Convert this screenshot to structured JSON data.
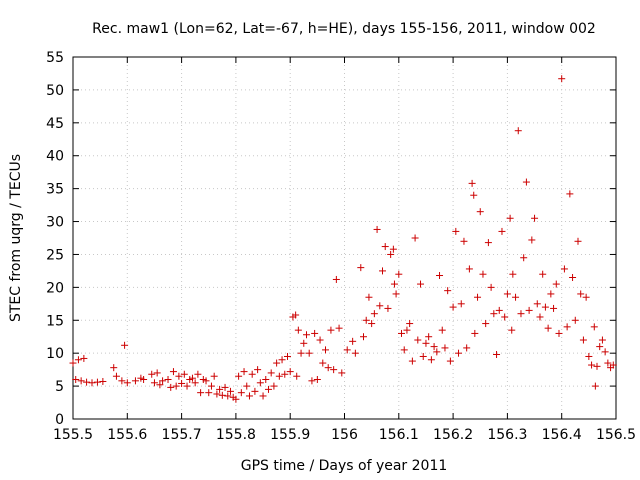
{
  "chart_data": {
    "type": "scatter",
    "title": "Rec. maw1 (Lon=62, Lat=-67, h=HE), days 155-156, 2011, window 002",
    "xlabel": "GPS time / Days of year 2011",
    "ylabel": "STEC from uqrg / TECUs",
    "xlim": [
      155.5,
      156.5
    ],
    "ylim": [
      0,
      55
    ],
    "x_ticks": [
      155.5,
      155.6,
      155.7,
      155.8,
      155.9,
      156,
      156.1,
      156.2,
      156.3,
      156.4,
      156.5
    ],
    "x_tick_labels": [
      "155.5",
      "155.6",
      "155.7",
      "155.8",
      "155.9",
      "156",
      "156.1",
      "156.2",
      "156.3",
      "156.4",
      "156.5"
    ],
    "y_ticks": [
      0,
      5,
      10,
      15,
      20,
      25,
      30,
      35,
      40,
      45,
      50,
      55
    ],
    "y_tick_labels": [
      "0",
      "5",
      "10",
      "15",
      "20",
      "25",
      "30",
      "35",
      "40",
      "45",
      "50",
      "55"
    ],
    "grid": true,
    "legend": "none",
    "marker": "plus",
    "series": [
      {
        "color": "#cc0000",
        "points": [
          [
            155.5,
            8.5
          ],
          [
            155.505,
            6.0
          ],
          [
            155.51,
            9.0
          ],
          [
            155.515,
            5.8
          ],
          [
            155.52,
            9.2
          ],
          [
            155.525,
            5.6
          ],
          [
            155.535,
            5.5
          ],
          [
            155.545,
            5.6
          ],
          [
            155.555,
            5.7
          ],
          [
            155.575,
            7.8
          ],
          [
            155.58,
            6.5
          ],
          [
            155.595,
            11.2
          ],
          [
            155.59,
            5.8
          ],
          [
            155.6,
            5.5
          ],
          [
            155.615,
            5.8
          ],
          [
            155.625,
            6.2
          ],
          [
            155.63,
            6.0
          ],
          [
            155.645,
            6.8
          ],
          [
            155.65,
            5.5
          ],
          [
            155.655,
            7.0
          ],
          [
            155.66,
            5.2
          ],
          [
            155.665,
            5.8
          ],
          [
            155.675,
            6.0
          ],
          [
            155.68,
            4.8
          ],
          [
            155.685,
            7.2
          ],
          [
            155.69,
            5.0
          ],
          [
            155.695,
            6.5
          ],
          [
            155.7,
            5.4
          ],
          [
            155.705,
            6.8
          ],
          [
            155.71,
            5.0
          ],
          [
            155.715,
            6.0
          ],
          [
            155.72,
            6.2
          ],
          [
            155.725,
            5.5
          ],
          [
            155.73,
            6.8
          ],
          [
            155.735,
            4.0
          ],
          [
            155.74,
            6.0
          ],
          [
            155.745,
            5.8
          ],
          [
            155.75,
            4.0
          ],
          [
            155.755,
            5.0
          ],
          [
            155.76,
            6.5
          ],
          [
            155.765,
            3.8
          ],
          [
            155.77,
            4.5
          ],
          [
            155.775,
            3.6
          ],
          [
            155.78,
            4.8
          ],
          [
            155.785,
            3.5
          ],
          [
            155.79,
            4.2
          ],
          [
            155.795,
            3.3
          ],
          [
            155.8,
            3.0
          ],
          [
            155.805,
            6.5
          ],
          [
            155.81,
            4.0
          ],
          [
            155.815,
            7.2
          ],
          [
            155.82,
            5.0
          ],
          [
            155.825,
            3.5
          ],
          [
            155.83,
            6.8
          ],
          [
            155.835,
            4.2
          ],
          [
            155.84,
            7.5
          ],
          [
            155.845,
            5.5
          ],
          [
            155.85,
            3.5
          ],
          [
            155.855,
            6.0
          ],
          [
            155.86,
            4.5
          ],
          [
            155.865,
            7.0
          ],
          [
            155.87,
            5.0
          ],
          [
            155.875,
            8.5
          ],
          [
            155.88,
            6.5
          ],
          [
            155.885,
            9.0
          ],
          [
            155.89,
            6.8
          ],
          [
            155.895,
            9.5
          ],
          [
            155.9,
            7.2
          ],
          [
            155.905,
            15.5
          ],
          [
            155.91,
            15.8
          ],
          [
            155.912,
            6.5
          ],
          [
            155.915,
            13.5
          ],
          [
            155.92,
            10.0
          ],
          [
            155.925,
            11.5
          ],
          [
            155.93,
            12.8
          ],
          [
            155.935,
            10.0
          ],
          [
            155.94,
            5.8
          ],
          [
            155.945,
            13.0
          ],
          [
            155.95,
            6.0
          ],
          [
            155.955,
            12.0
          ],
          [
            155.96,
            8.5
          ],
          [
            155.965,
            10.5
          ],
          [
            155.97,
            7.8
          ],
          [
            155.975,
            13.5
          ],
          [
            155.98,
            7.5
          ],
          [
            155.985,
            21.2
          ],
          [
            155.99,
            13.8
          ],
          [
            155.995,
            7.0
          ],
          [
            156.005,
            10.5
          ],
          [
            156.015,
            11.8
          ],
          [
            156.02,
            10.0
          ],
          [
            156.03,
            23.0
          ],
          [
            156.035,
            12.5
          ],
          [
            156.04,
            15.0
          ],
          [
            156.045,
            18.5
          ],
          [
            156.05,
            14.5
          ],
          [
            156.055,
            16.0
          ],
          [
            156.06,
            28.8
          ],
          [
            156.065,
            17.2
          ],
          [
            156.07,
            22.5
          ],
          [
            156.075,
            26.2
          ],
          [
            156.08,
            16.8
          ],
          [
            156.085,
            25.0
          ],
          [
            156.09,
            25.8
          ],
          [
            156.092,
            20.5
          ],
          [
            156.095,
            19.0
          ],
          [
            156.1,
            22.0
          ],
          [
            156.105,
            13.0
          ],
          [
            156.11,
            10.5
          ],
          [
            156.115,
            13.5
          ],
          [
            156.12,
            14.5
          ],
          [
            156.125,
            8.8
          ],
          [
            156.13,
            27.5
          ],
          [
            156.135,
            12.0
          ],
          [
            156.14,
            20.5
          ],
          [
            156.145,
            9.5
          ],
          [
            156.15,
            11.5
          ],
          [
            156.155,
            12.5
          ],
          [
            156.16,
            9.0
          ],
          [
            156.165,
            11.0
          ],
          [
            156.17,
            10.2
          ],
          [
            156.175,
            21.8
          ],
          [
            156.18,
            13.5
          ],
          [
            156.185,
            10.8
          ],
          [
            156.19,
            19.5
          ],
          [
            156.195,
            8.8
          ],
          [
            156.2,
            17.0
          ],
          [
            156.205,
            28.5
          ],
          [
            156.21,
            10.0
          ],
          [
            156.215,
            17.5
          ],
          [
            156.22,
            27.0
          ],
          [
            156.225,
            10.8
          ],
          [
            156.23,
            22.8
          ],
          [
            156.235,
            35.8
          ],
          [
            156.238,
            34.0
          ],
          [
            156.24,
            13.0
          ],
          [
            156.245,
            18.5
          ],
          [
            156.25,
            31.5
          ],
          [
            156.255,
            22.0
          ],
          [
            156.26,
            14.5
          ],
          [
            156.265,
            26.8
          ],
          [
            156.27,
            20.0
          ],
          [
            156.275,
            16.0
          ],
          [
            156.28,
            9.8
          ],
          [
            156.285,
            16.5
          ],
          [
            156.29,
            28.5
          ],
          [
            156.295,
            15.5
          ],
          [
            156.3,
            19.0
          ],
          [
            156.305,
            30.5
          ],
          [
            156.308,
            13.5
          ],
          [
            156.31,
            22.0
          ],
          [
            156.315,
            18.5
          ],
          [
            156.32,
            43.8
          ],
          [
            156.325,
            16.0
          ],
          [
            156.33,
            24.5
          ],
          [
            156.335,
            36.0
          ],
          [
            156.34,
            16.5
          ],
          [
            156.345,
            27.2
          ],
          [
            156.35,
            30.5
          ],
          [
            156.355,
            17.5
          ],
          [
            156.36,
            15.5
          ],
          [
            156.365,
            22.0
          ],
          [
            156.37,
            17.0
          ],
          [
            156.375,
            13.8
          ],
          [
            156.38,
            19.0
          ],
          [
            156.385,
            16.8
          ],
          [
            156.39,
            20.5
          ],
          [
            156.395,
            13.0
          ],
          [
            156.4,
            51.7
          ],
          [
            156.405,
            22.8
          ],
          [
            156.41,
            14.0
          ],
          [
            156.415,
            34.2
          ],
          [
            156.42,
            21.5
          ],
          [
            156.425,
            15.0
          ],
          [
            156.43,
            27.0
          ],
          [
            156.435,
            19.0
          ],
          [
            156.44,
            12.0
          ],
          [
            156.445,
            18.5
          ],
          [
            156.45,
            9.5
          ],
          [
            156.455,
            8.2
          ],
          [
            156.46,
            14.0
          ],
          [
            156.462,
            5.0
          ],
          [
            156.465,
            8.0
          ],
          [
            156.47,
            11.0
          ],
          [
            156.475,
            12.0
          ],
          [
            156.48,
            10.2
          ],
          [
            156.485,
            8.5
          ],
          [
            156.49,
            7.8
          ],
          [
            156.495,
            8.2
          ]
        ]
      }
    ]
  }
}
